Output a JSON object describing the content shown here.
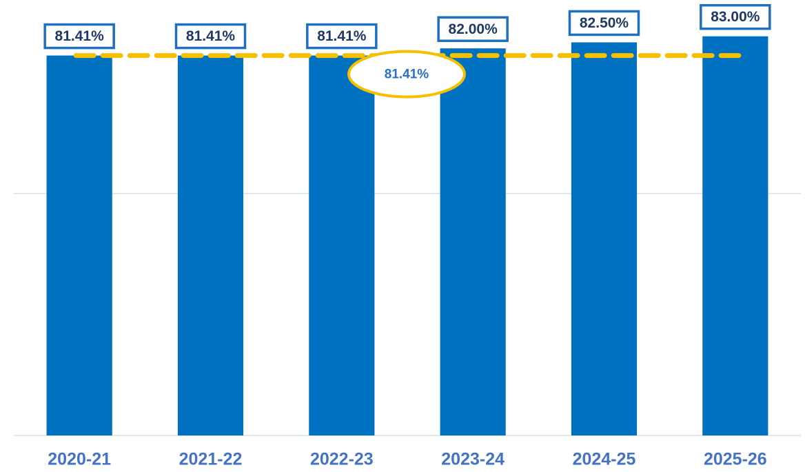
{
  "chart_data": {
    "type": "bar",
    "categories": [
      "2020-21",
      "2021-22",
      "2022-23",
      "2023-24",
      "2024-25",
      "2025-26"
    ],
    "values": [
      81.41,
      81.41,
      81.41,
      82.0,
      82.5,
      83.0
    ],
    "value_labels": [
      "81.41%",
      "81.41%",
      "81.41%",
      "82.00%",
      "82.50%",
      "83.00%"
    ],
    "color": "#0070c0",
    "ylim": [
      50,
      86
    ],
    "yticks": [
      50,
      70
    ],
    "grid": true,
    "reference_line": {
      "value": 81.41,
      "label": "81.41%",
      "color": "#f5c000"
    }
  }
}
